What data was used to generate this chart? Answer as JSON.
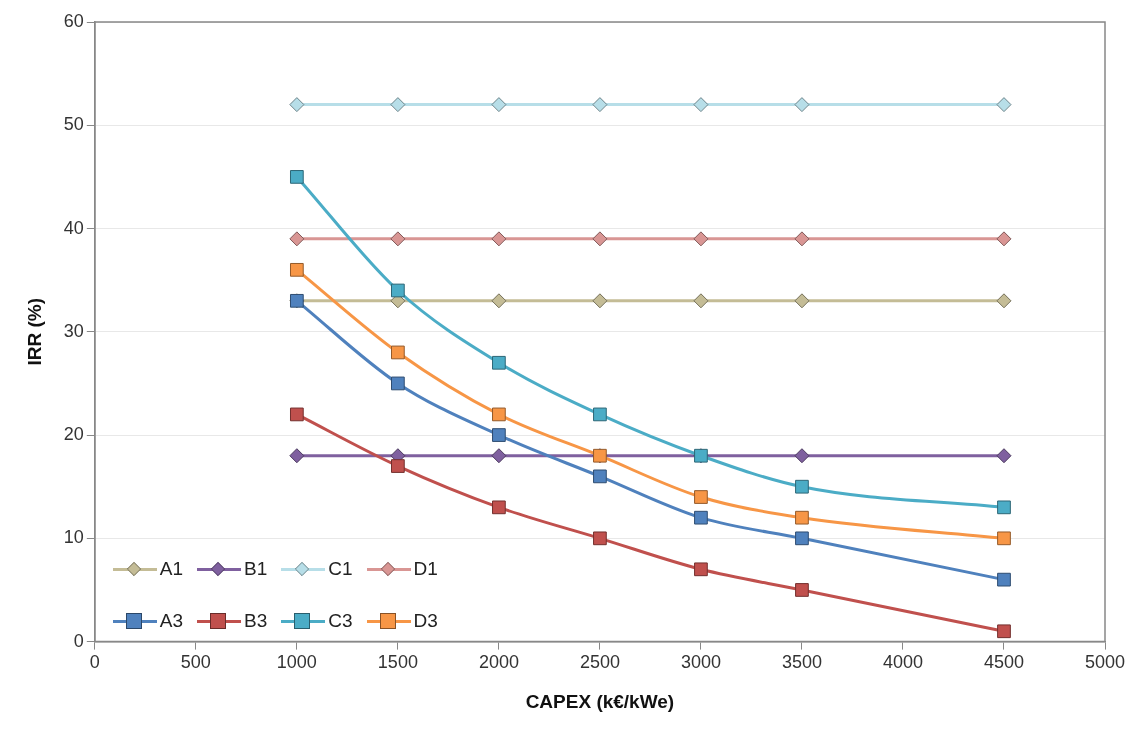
{
  "chart_data": {
    "type": "line",
    "xlabel": "CAPEX (k€/kWe)",
    "ylabel": "IRR (%)",
    "x": [
      1000,
      1500,
      2000,
      2500,
      3000,
      3500,
      4500
    ],
    "xlim": [
      0,
      5000
    ],
    "xticks": [
      0,
      500,
      1000,
      1500,
      2000,
      2500,
      3000,
      3500,
      4000,
      4500,
      5000
    ],
    "ylim": [
      0,
      60
    ],
    "yticks": [
      0,
      10,
      20,
      30,
      40,
      50,
      60
    ],
    "grid": "y",
    "legend": "bottom left",
    "series": [
      {
        "name": "A1",
        "color": "#c4bc96",
        "marker": "diamond",
        "values": [
          33,
          33,
          33,
          33,
          33,
          33,
          33
        ]
      },
      {
        "name": "B1",
        "color": "#7f609f",
        "marker": "diamond",
        "values": [
          18,
          18,
          18,
          18,
          18,
          18,
          18
        ]
      },
      {
        "name": "C1",
        "color": "#b7dee8",
        "marker": "diamond",
        "values": [
          52,
          52,
          52,
          52,
          52,
          52,
          52
        ]
      },
      {
        "name": "D1",
        "color": "#d99694",
        "marker": "diamond",
        "values": [
          39,
          39,
          39,
          39,
          39,
          39,
          39
        ]
      },
      {
        "name": "A3",
        "color": "#4f81bd",
        "marker": "square",
        "values": [
          33,
          25,
          20,
          16,
          12,
          10,
          6
        ]
      },
      {
        "name": "B3",
        "color": "#c0504d",
        "marker": "square",
        "values": [
          22,
          17,
          13,
          10,
          7,
          5,
          1
        ]
      },
      {
        "name": "C3",
        "color": "#4bacc6",
        "marker": "square",
        "values": [
          45,
          34,
          27,
          22,
          18,
          15,
          13
        ]
      },
      {
        "name": "D3",
        "color": "#f79646",
        "marker": "square",
        "values": [
          36,
          28,
          22,
          18,
          14,
          12,
          10
        ]
      }
    ]
  }
}
